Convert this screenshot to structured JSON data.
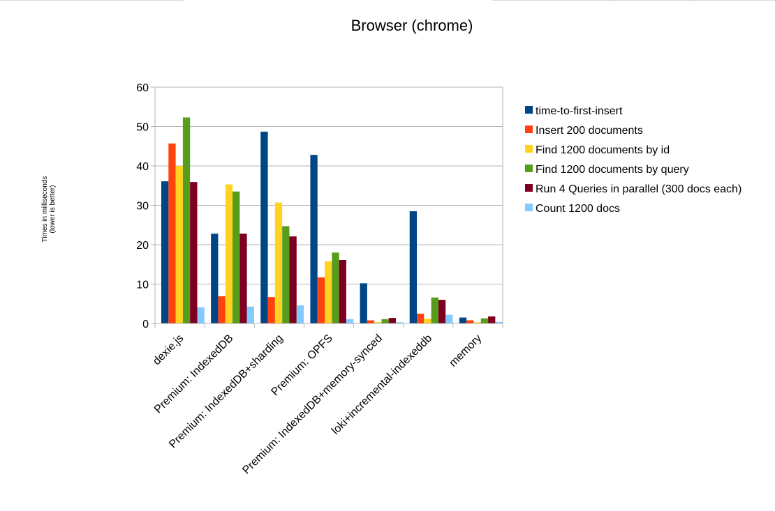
{
  "chart_data": {
    "type": "bar",
    "title": "Browser (chrome)",
    "ylabel_line1": "Times in milliseconds",
    "ylabel_line2": "(lower is better)",
    "ylim": [
      0,
      60
    ],
    "yticks": [
      0,
      10,
      20,
      30,
      40,
      50,
      60
    ],
    "grid": true,
    "legend_position": "right",
    "categories": [
      "dexie.js",
      "Premium: IndexedDB",
      "Premium: IndexedDB+sharding",
      "Premium: OPFS",
      "Premium: IndexedDB+memory-synced",
      "loki+incremental-indexeddb",
      "memory"
    ],
    "series": [
      {
        "name": "time-to-first-insert",
        "color": "#004586",
        "values": [
          36.1,
          22.8,
          48.7,
          42.8,
          10.2,
          28.5,
          1.5
        ]
      },
      {
        "name": "Insert 200 documents",
        "color": "#ff420e",
        "values": [
          45.7,
          6.9,
          6.7,
          11.7,
          0.8,
          2.5,
          0.8
        ]
      },
      {
        "name": "Find 1200 documents by id",
        "color": "#ffd320",
        "values": [
          40.0,
          35.3,
          30.7,
          15.8,
          0.3,
          1.2,
          0.3
        ]
      },
      {
        "name": "Find 1200 documents by query",
        "color": "#579d1c",
        "values": [
          52.3,
          33.5,
          24.7,
          18.0,
          1.1,
          6.6,
          1.3
        ]
      },
      {
        "name": "Run 4 Queries in parallel (300 docs each)",
        "color": "#7e0021",
        "values": [
          35.9,
          22.8,
          22.1,
          16.1,
          1.4,
          6.0,
          1.8
        ]
      },
      {
        "name": "Count 1200 docs",
        "color": "#83caff",
        "values": [
          4.1,
          4.3,
          4.6,
          1.1,
          0.3,
          2.2,
          0.4
        ]
      }
    ]
  }
}
